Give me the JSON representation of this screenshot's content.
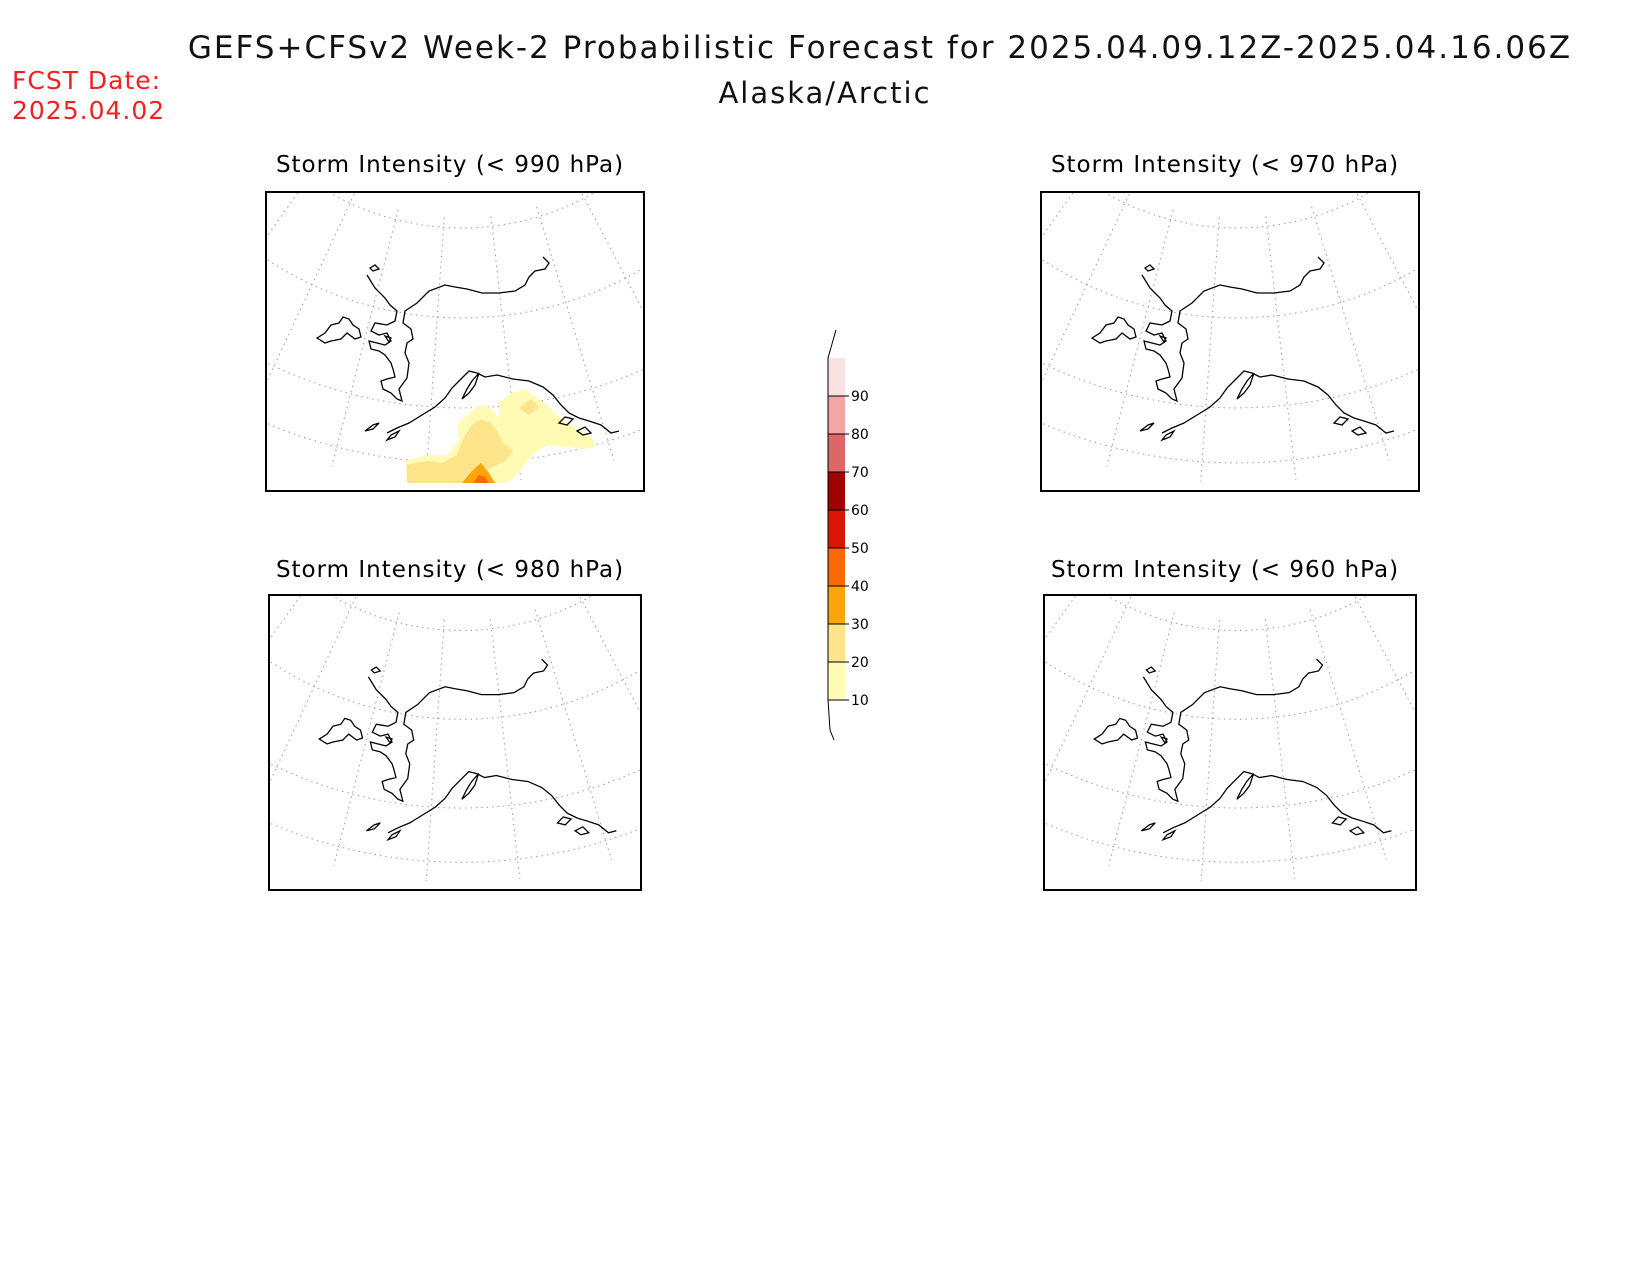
{
  "header": {
    "title": "GEFS+CFSv2 Week-2 Probabilistic Forecast for 2025.04.09.12Z-2025.04.16.06Z",
    "subtitle": "Alaska/Arctic",
    "fcst_label": "FCST Date:",
    "fcst_date": "2025.04.02"
  },
  "panels": [
    {
      "id": "p990",
      "title": "Storm Intensity (< 990 hPa)",
      "has_probability_shading": true
    },
    {
      "id": "p970",
      "title": "Storm Intensity (< 970 hPa)",
      "has_probability_shading": false
    },
    {
      "id": "p980",
      "title": "Storm Intensity (< 980 hPa)",
      "has_probability_shading": false
    },
    {
      "id": "p960",
      "title": "Storm Intensity (< 960 hPa)",
      "has_probability_shading": false
    }
  ],
  "colorbar": {
    "levels": [
      "10",
      "20",
      "30",
      "40",
      "50",
      "60",
      "70",
      "80",
      "90"
    ],
    "colors": [
      "#fffbb5",
      "#fde48a",
      "#fba40c",
      "#fb6a04",
      "#dc1606",
      "#a00400",
      "#dd6666",
      "#f2a6a6",
      "#fbe2e2"
    ]
  }
}
